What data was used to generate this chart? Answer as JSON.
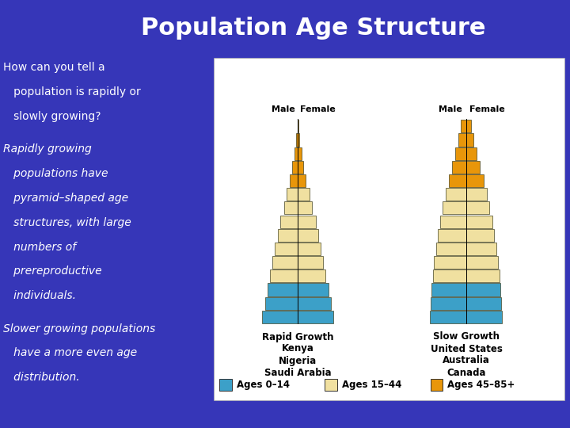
{
  "title": "Population Age Structure",
  "bg_color": "#3636b8",
  "title_fontsize": 22,
  "body_text": [
    [
      "How can you tell a",
      false,
      10
    ],
    [
      "   population is rapidly or",
      false,
      10
    ],
    [
      "   slowly growing?",
      false,
      10
    ],
    [
      "",
      false,
      10
    ],
    [
      "Rapidly growing",
      true,
      10
    ],
    [
      "   populations have",
      true,
      10
    ],
    [
      "   pyramid–shaped age",
      true,
      10
    ],
    [
      "   structures, with large",
      true,
      10
    ],
    [
      "   numbers of",
      true,
      10
    ],
    [
      "   prereproductive",
      true,
      10
    ],
    [
      "   individuals.",
      true,
      10
    ],
    [
      "",
      false,
      10
    ],
    [
      "Slower growing populations",
      true,
      10
    ],
    [
      "   have a more even age",
      true,
      10
    ],
    [
      "   distribution.",
      true,
      10
    ]
  ],
  "color_blue": "#3ca0c8",
  "color_cream": "#f0e0a0",
  "color_orange": "#e8960a",
  "rapid_growth_label": "Rapid Growth\nKenya\nNigeria\nSaudi Arabia",
  "slow_growth_label": "Slow Growth\nUnited States\nAustralia\nCanada",
  "legend_labels": [
    "Ages 0–14",
    "Ages 15–44",
    "Ages 45–85+"
  ],
  "rapid_widths": [
    14.0,
    13.0,
    12.0,
    11.0,
    10.0,
    9.0,
    8.0,
    7.0,
    5.5,
    4.5,
    3.2,
    2.2,
    1.4,
    0.7,
    0.2
  ],
  "rapid_groups": [
    0,
    0,
    0,
    1,
    1,
    1,
    1,
    1,
    1,
    1,
    2,
    2,
    2,
    2,
    2
  ],
  "slow_widths": [
    10.0,
    9.8,
    9.5,
    9.2,
    8.8,
    8.3,
    7.8,
    7.2,
    6.5,
    5.7,
    4.8,
    3.8,
    2.9,
    2.1,
    1.4
  ],
  "slow_groups": [
    0,
    0,
    0,
    1,
    1,
    1,
    1,
    1,
    1,
    1,
    2,
    2,
    2,
    2,
    2
  ]
}
